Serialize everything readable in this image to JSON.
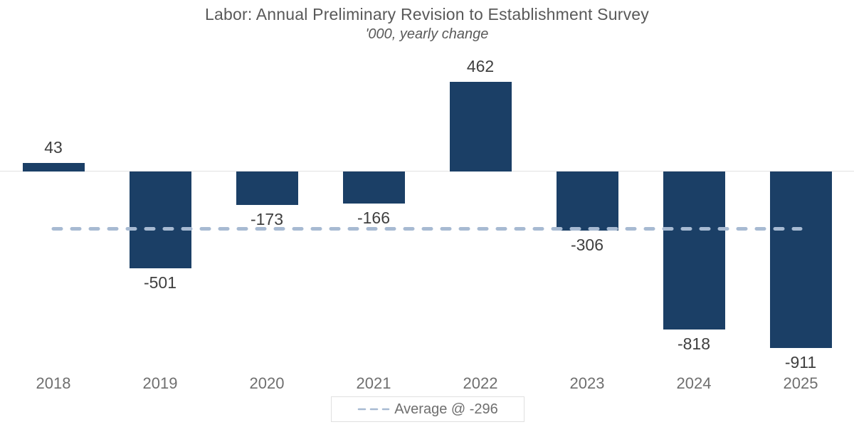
{
  "chart_data": {
    "type": "bar",
    "title": "Labor: Annual Preliminary Revision to Establishment Survey",
    "subtitle": "'000, yearly change",
    "categories": [
      "2018",
      "2019",
      "2020",
      "2021",
      "2022",
      "2023",
      "2024",
      "2025"
    ],
    "values": [
      43,
      -501,
      -173,
      -166,
      462,
      -306,
      -818,
      -911
    ],
    "value_labels": [
      "43",
      "-501",
      "-173",
      "-166",
      "462",
      "-306",
      "-818",
      "-911"
    ],
    "average_line": {
      "value": -296,
      "label": "Average @ -296",
      "style": "dashed",
      "color": "#a7bad2"
    },
    "bar_color": "#1b3f66",
    "zero_line_color": "#e2e2e2",
    "value_label_color": "#3f3f3f",
    "axis_label_color": "#6f6f6f",
    "title_color": "#595959",
    "xlabel": "",
    "ylabel": "",
    "grid": "none",
    "y_axis_ticks": "none",
    "legend_position": "bottom-center"
  }
}
